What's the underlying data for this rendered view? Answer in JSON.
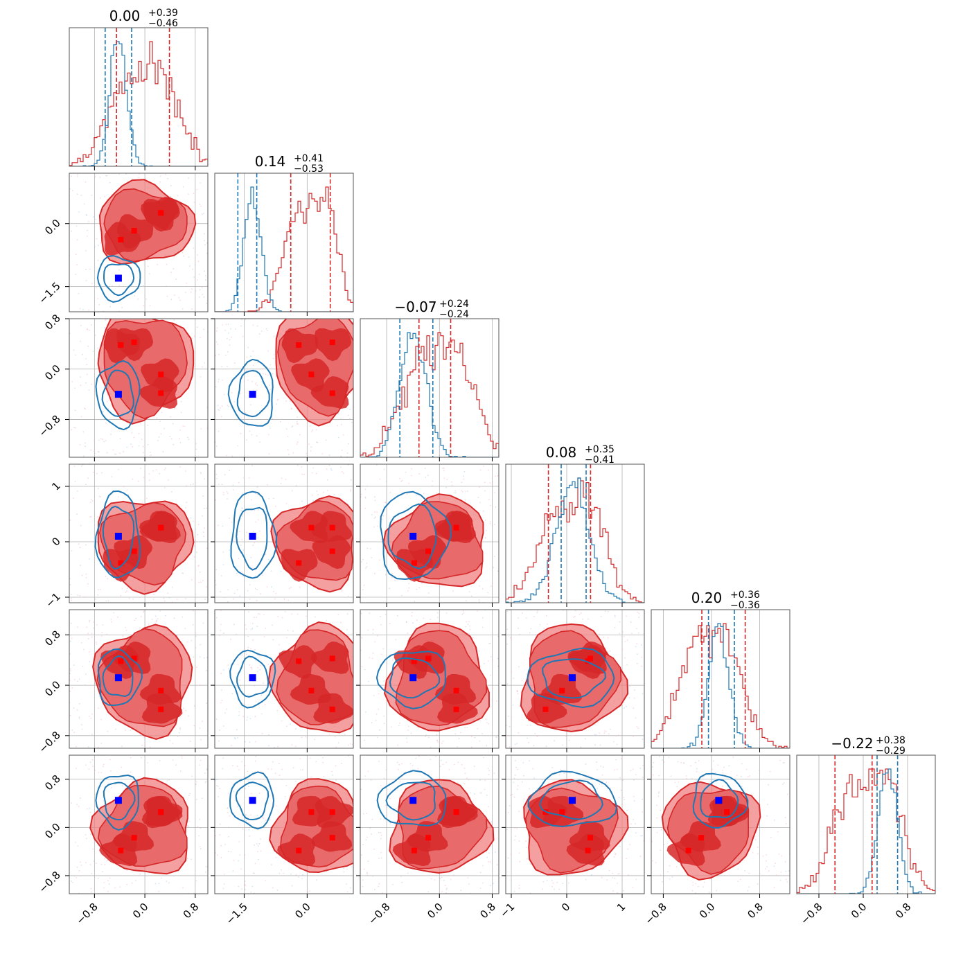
{
  "chart_data": {
    "type": "scatter",
    "subtype": "corner-plot",
    "n_params": 6,
    "colors": {
      "blue": "#1f77b4",
      "red": "#d62728",
      "marker_blue": "#0000ff",
      "marker_red": "#ff0000",
      "grid": "#b0b0b0",
      "axis": "#000000"
    },
    "titles": [
      {
        "value": "0.00",
        "plus": "+0.39",
        "minus": "−0.46"
      },
      {
        "value": "0.14",
        "plus": "+0.41",
        "minus": "−0.53"
      },
      {
        "value": "−0.07",
        "plus": "+0.24",
        "minus": "−0.24"
      },
      {
        "value": "0.08",
        "plus": "+0.35",
        "minus": "−0.41"
      },
      {
        "value": "0.20",
        "plus": "+0.36",
        "minus": "−0.36"
      },
      {
        "value": "−0.22",
        "plus": "+0.38",
        "minus": "−0.29"
      }
    ],
    "ranges": [
      [
        -1.2,
        1.0
      ],
      [
        -2.2,
        1.1
      ],
      [
        -1.2,
        0.9
      ],
      [
        -1.1,
        1.4
      ],
      [
        -1.0,
        1.3
      ],
      [
        -1.2,
        1.3
      ]
    ],
    "y_ranges": {
      "1": [
        -2.1,
        1.2
      ],
      "2": [
        -1.4,
        0.8
      ],
      "3": [
        -1.1,
        1.4
      ],
      "4": [
        -1.0,
        1.2
      ],
      "5": [
        -1.1,
        1.2
      ]
    },
    "ticks": [
      [
        -0.8,
        0.0,
        0.8
      ],
      [
        -1.5,
        0.0
      ],
      [
        -0.8,
        0.0,
        0.8
      ],
      [
        -1,
        0,
        1
      ],
      [
        -0.8,
        0.0,
        0.8
      ],
      [
        -0.8,
        0.0,
        0.8
      ]
    ],
    "tick_labels": [
      [
        "−0.8",
        "0.0",
        "0.8"
      ],
      [
        "−1.5",
        "0.0"
      ],
      [
        "−0.8",
        "0.0",
        "0.8"
      ],
      [
        "−1",
        "0",
        "1"
      ],
      [
        "−0.8",
        "0.0",
        "0.8"
      ],
      [
        "−0.8",
        "0.0",
        "0.8"
      ]
    ],
    "red_modes": [
      [
        -0.45,
        0.45
      ],
      [
        -0.2,
        0.5
      ],
      [
        0.3,
        -0.1
      ],
      [
        0.3,
        -0.45
      ]
    ],
    "blue_center": [
      -0.42,
      -1.3,
      -0.4,
      0.1,
      0.12,
      0.45
    ],
    "blue_spread": [
      0.13,
      0.2,
      0.2,
      0.3,
      0.17,
      0.17
    ],
    "hist_lines": {
      "blue": [
        [
          -0.63,
          -0.21
        ],
        [
          -1.65,
          -1.2
        ],
        [
          -0.6,
          -0.1
        ],
        [
          -0.1,
          0.35
        ],
        [
          -0.05,
          0.38
        ],
        [
          0.25,
          0.62
        ]
      ],
      "red": [
        [
          -0.45,
          0.39
        ],
        [
          -0.39,
          0.55
        ],
        [
          -0.31,
          0.17
        ],
        [
          -0.33,
          0.43
        ],
        [
          -0.16,
          0.56
        ],
        [
          -0.51,
          0.16
        ]
      ]
    }
  }
}
